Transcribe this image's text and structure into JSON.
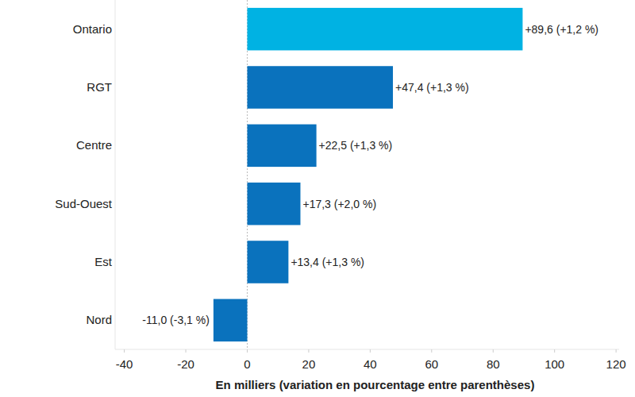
{
  "chart_data": {
    "type": "bar",
    "orientation": "horizontal",
    "x_label": "En milliers (variation en pourcentage entre parenthèses)",
    "categories": [
      "Ontario",
      "RGT",
      "Centre",
      "Sud-Ouest",
      "Est",
      "Nord"
    ],
    "values": [
      89.6,
      47.4,
      22.5,
      17.3,
      13.4,
      -11.0
    ],
    "value_labels": [
      "+89,6 (+1,2 %)",
      "+47,4 (+1,3 %)",
      "+22,5 (+1,3 %)",
      "+17,3 (+2,0 %)",
      "+13,4 (+1,3 %)",
      "-11,0 (-3,1 %)"
    ],
    "colors": [
      "#00b2e3",
      "#0a72bd",
      "#0a72bd",
      "#0a72bd",
      "#0a72bd",
      "#0a72bd"
    ],
    "xlim": [
      -43,
      121
    ],
    "xticks": [
      -40,
      -20,
      0,
      20,
      40,
      60,
      80,
      100,
      120
    ],
    "grid": false,
    "data_labels": true
  }
}
